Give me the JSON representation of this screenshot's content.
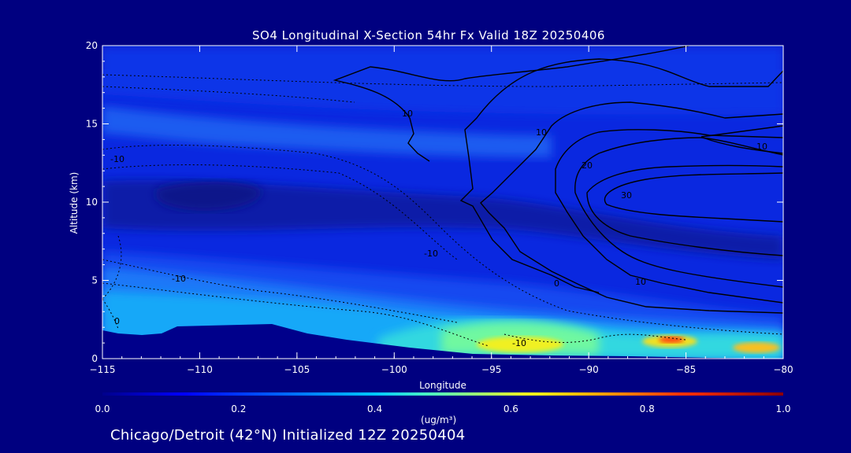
{
  "chart_data": {
    "type": "heatmap",
    "title": "SO4 Longitudinal X-Section 54hr  Fx Valid 18Z 20250406",
    "subtitle": "Chicago/Detroit (42°N) Initialized 12Z 20250404",
    "xlabel": "Longitude",
    "ylabel": "Altitude (km)",
    "xlim": [
      -115,
      -80
    ],
    "ylim": [
      0,
      20
    ],
    "x_ticks": [
      -115,
      -110,
      -105,
      -100,
      -95,
      -90,
      -85,
      -80
    ],
    "y_ticks": [
      0,
      5,
      10,
      15,
      20
    ],
    "colorbar": {
      "label": "(ug/m³)",
      "range": [
        0.0,
        1.0
      ],
      "tick_labels": [
        "0.0",
        "0.2",
        "0.4",
        "0.6",
        "0.8",
        "1.0"
      ],
      "colors": [
        "#00008b",
        "#0000ff",
        "#0070ff",
        "#00c8ff",
        "#60ffb0",
        "#f0ff20",
        "#ffb000",
        "#ff3000",
        "#8b0000"
      ]
    },
    "field_values": [
      {
        "region": "upper troposphere (12–20 km)",
        "value": 0.12
      },
      {
        "region": "mid troposphere (8–12 km)",
        "value": 0.05
      },
      {
        "region": "lower troposphere (3–7 km)",
        "value": 0.25
      },
      {
        "region": "boundary layer -115 to -100",
        "value": 0.35
      },
      {
        "region": "boundary layer -100 to -80",
        "value": 0.55
      },
      {
        "region": "hot spot near -93, 1 km",
        "value": 0.65
      },
      {
        "region": "hot spot near -86, 1 km",
        "value": 0.85
      },
      {
        "region": "hot spot near -81, 0.5 km",
        "value": 0.7
      }
    ],
    "contour_labels": [
      "-10",
      "10",
      "20",
      "30",
      "-10",
      "0",
      "10",
      "-10",
      "-10",
      "0",
      "10",
      "10"
    ]
  }
}
